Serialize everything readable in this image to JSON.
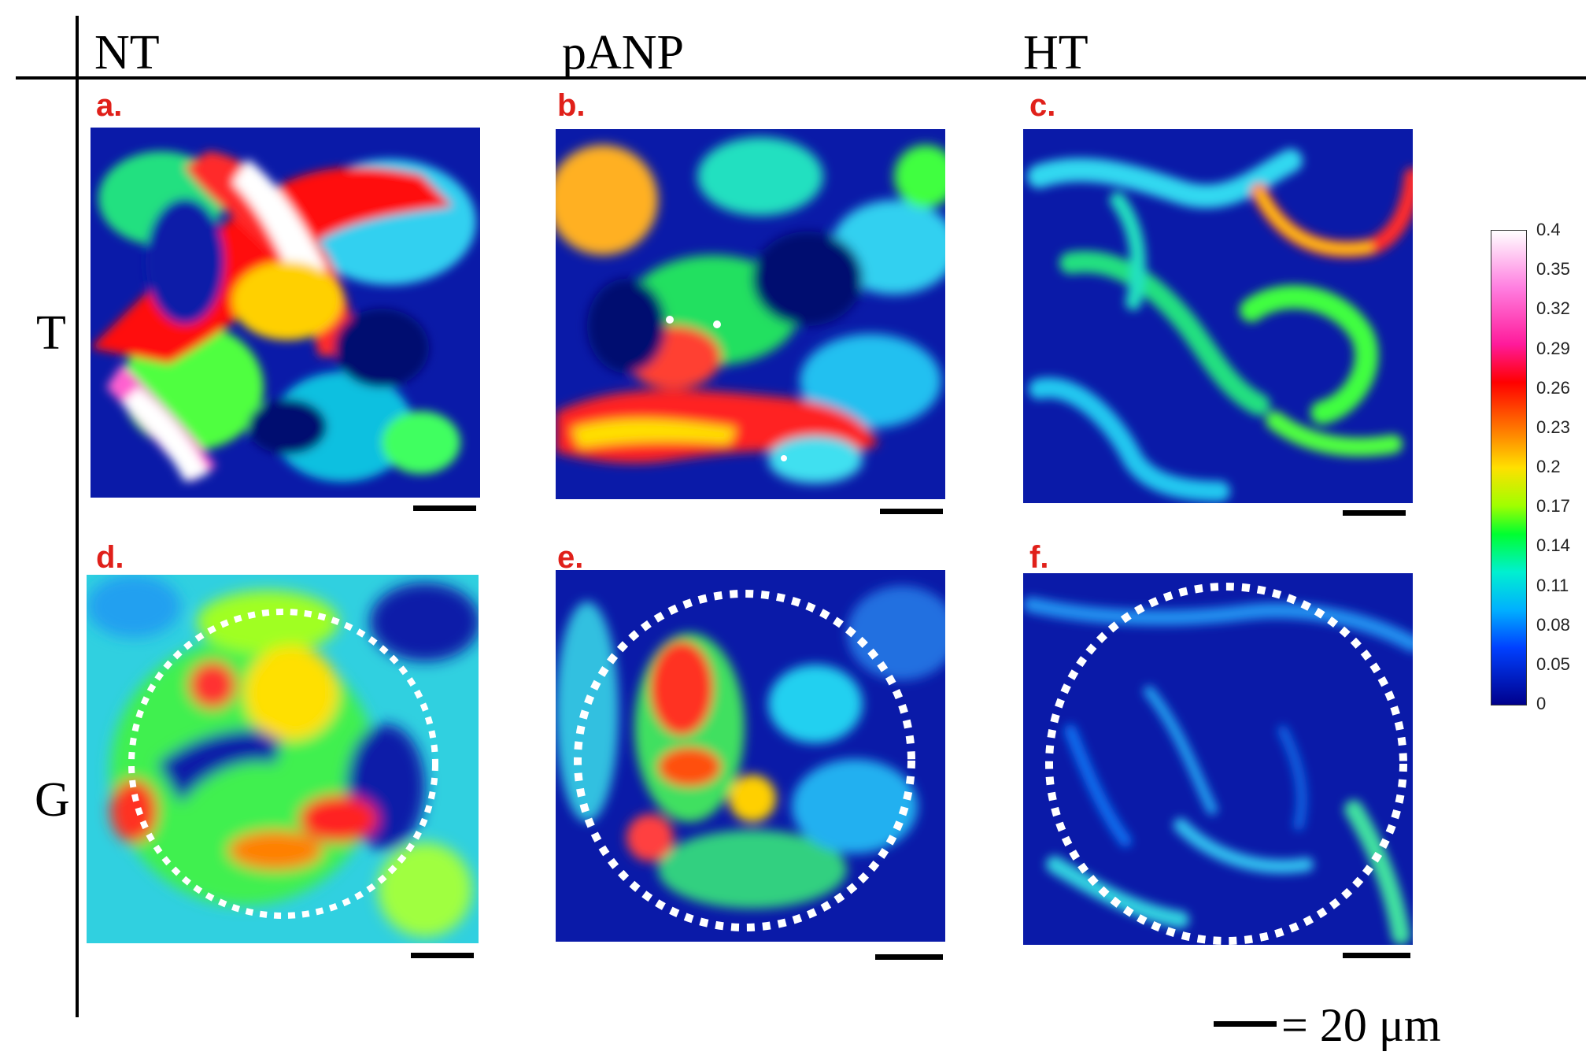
{
  "columns": [
    "NT",
    "pANP",
    "HT"
  ],
  "rows": [
    "T",
    "G"
  ],
  "panels": [
    {
      "letter": "a."
    },
    {
      "letter": "b."
    },
    {
      "letter": "c."
    },
    {
      "letter": "d."
    },
    {
      "letter": "e."
    },
    {
      "letter": "f."
    }
  ],
  "colorbar": {
    "ticks": [
      "0.4",
      "0.35",
      "0.32",
      "0.29",
      "0.26",
      "0.23",
      "0.2",
      "0.17",
      "0.14",
      "0.11",
      "0.08",
      "0.05",
      "0"
    ]
  },
  "scale_legend": "= 20 μm"
}
